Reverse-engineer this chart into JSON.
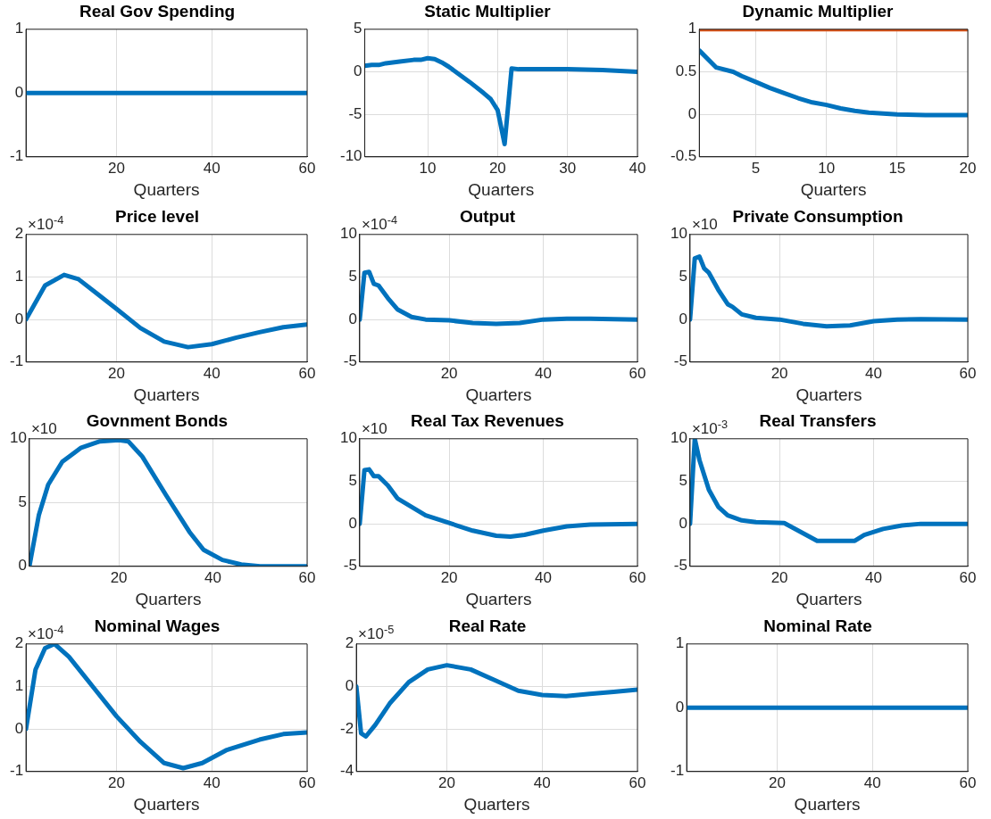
{
  "chart_data": [
    {
      "type": "line",
      "title": "Real Gov Spending",
      "xlabel": "Quarters",
      "xlim": [
        1,
        60
      ],
      "xticks": [
        20,
        40,
        60
      ],
      "ylim": [
        -1,
        1
      ],
      "yticks": [
        -1,
        0,
        1
      ],
      "grid": true,
      "series": [
        {
          "color": "#0072bd",
          "x": [
            1,
            60
          ],
          "values": [
            0,
            0
          ]
        }
      ]
    },
    {
      "type": "line",
      "title": "Static Multiplier",
      "xlabel": "Quarters",
      "xlim": [
        1,
        40
      ],
      "xticks": [
        10,
        20,
        30,
        40
      ],
      "ylim": [
        -10,
        5
      ],
      "yticks": [
        -10,
        -5,
        0,
        5
      ],
      "grid": true,
      "series": [
        {
          "color": "#0072bd",
          "x": [
            1,
            2,
            3,
            4,
            6,
            8,
            9,
            10,
            11,
            12,
            13,
            14,
            16,
            18,
            19,
            20,
            21,
            22,
            23,
            30,
            35,
            40
          ],
          "values": [
            0.7,
            0.8,
            0.8,
            1.0,
            1.2,
            1.4,
            1.4,
            1.6,
            1.5,
            1.1,
            0.6,
            0,
            -1.2,
            -2.5,
            -3.2,
            -4.5,
            -8.5,
            0.4,
            0.3,
            0.3,
            0.2,
            0
          ]
        }
      ]
    },
    {
      "type": "line",
      "title": "Dynamic Multiplier",
      "xlabel": "Quarters",
      "xlim": [
        1,
        20
      ],
      "xticks": [
        5,
        10,
        15,
        20
      ],
      "ylim": [
        -0.5,
        1
      ],
      "yticks": [
        -0.5,
        0,
        0.5,
        1
      ],
      "grid": true,
      "series": [
        {
          "color": "#0072bd",
          "x": [
            1,
            2.2,
            3.4,
            4,
            5,
            6,
            7,
            8,
            9,
            10,
            11,
            12,
            13,
            14,
            15,
            17,
            20
          ],
          "values": [
            0.75,
            0.55,
            0.5,
            0.45,
            0.38,
            0.31,
            0.25,
            0.19,
            0.14,
            0.11,
            0.07,
            0.04,
            0.02,
            0.01,
            0,
            -0.01,
            -0.01
          ]
        },
        {
          "color": "#d95319",
          "x": [
            1,
            20
          ],
          "values": [
            1,
            1
          ]
        }
      ]
    },
    {
      "type": "line",
      "title": "Price level",
      "xlabel": "Quarters",
      "xlim": [
        1,
        60
      ],
      "xticks": [
        20,
        40,
        60
      ],
      "ylim": [
        -1,
        2
      ],
      "yticks": [
        -1,
        0,
        1,
        2
      ],
      "grid": true,
      "annotations": [
        "×10$^{-4}$"
      ],
      "series": [
        {
          "color": "#0072bd",
          "x": [
            1,
            5,
            9,
            12,
            16,
            20,
            25,
            30,
            35,
            40,
            45,
            50,
            55,
            60
          ],
          "values": [
            0,
            0.8,
            1.05,
            0.95,
            0.6,
            0.25,
            -0.2,
            -0.52,
            -0.65,
            -0.58,
            -0.43,
            -0.3,
            -0.18,
            -0.12
          ]
        }
      ]
    },
    {
      "type": "line",
      "title": "Output",
      "xlabel": "Quarters",
      "xlim": [
        1,
        60
      ],
      "xticks": [
        20,
        40,
        60
      ],
      "ylim": [
        -5,
        10
      ],
      "yticks": [
        -5,
        0,
        5,
        10
      ],
      "grid": true,
      "annotations": [
        "×10$^{-4}$"
      ],
      "series": [
        {
          "color": "#0072bd",
          "x": [
            1,
            2,
            3,
            4,
            5,
            7,
            9,
            12,
            15,
            20,
            25,
            30,
            35,
            40,
            45,
            50,
            60
          ],
          "values": [
            0,
            5.5,
            5.6,
            4.2,
            4,
            2.5,
            1.2,
            0.3,
            0,
            -0.1,
            -0.4,
            -0.5,
            -0.4,
            0,
            0.1,
            0.1,
            0
          ]
        }
      ]
    },
    {
      "type": "line",
      "title": "Private Consumption",
      "xlabel": "Quarters",
      "xlim": [
        1,
        60
      ],
      "xticks": [
        20,
        40,
        60
      ],
      "ylim": [
        -5,
        10
      ],
      "yticks": [
        -5,
        0,
        5,
        10
      ],
      "grid": true,
      "annotations": [
        "×10"
      ],
      "series": [
        {
          "color": "#0072bd",
          "x": [
            1,
            2,
            3,
            4,
            5,
            7,
            9,
            10,
            12,
            15,
            20,
            25,
            30,
            35,
            40,
            45,
            50,
            60
          ],
          "values": [
            0,
            7.2,
            7.4,
            6,
            5.5,
            3.5,
            1.8,
            1.5,
            0.6,
            0.2,
            0,
            -0.5,
            -0.8,
            -0.7,
            -0.2,
            0,
            0.05,
            0
          ]
        }
      ]
    },
    {
      "type": "line",
      "title": "Govnment Bonds",
      "xlabel": "Quarters",
      "xlim": [
        1,
        60
      ],
      "xticks": [
        20,
        40,
        60
      ],
      "ylim": [
        0,
        10
      ],
      "yticks": [
        0,
        5,
        10
      ],
      "grid": true,
      "annotations": [
        "×10"
      ],
      "series": [
        {
          "color": "#0072bd",
          "x": [
            1,
            3,
            5,
            8,
            12,
            16,
            20,
            22,
            25,
            30,
            35,
            38,
            42,
            46,
            50,
            60
          ],
          "values": [
            0,
            4,
            6.4,
            8.2,
            9.3,
            9.8,
            9.9,
            9.8,
            8.6,
            5.6,
            2.7,
            1.3,
            0.5,
            0.15,
            0,
            0
          ]
        }
      ]
    },
    {
      "type": "line",
      "title": "Real Tax Revenues",
      "xlabel": "Quarters",
      "xlim": [
        1,
        60
      ],
      "xticks": [
        20,
        40,
        60
      ],
      "ylim": [
        -5,
        10
      ],
      "yticks": [
        -5,
        0,
        5,
        10
      ],
      "grid": true,
      "annotations": [
        "×10"
      ],
      "series": [
        {
          "color": "#0072bd",
          "x": [
            1,
            2,
            3,
            4,
            5,
            7,
            9,
            12,
            15,
            20,
            25,
            30,
            33,
            36,
            40,
            45,
            50,
            60
          ],
          "values": [
            0,
            6.3,
            6.4,
            5.6,
            5.6,
            4.5,
            3,
            2,
            1,
            0.1,
            -0.8,
            -1.4,
            -1.5,
            -1.3,
            -0.8,
            -0.3,
            -0.1,
            0
          ]
        }
      ]
    },
    {
      "type": "line",
      "title": "Real Transfers",
      "xlabel": "Quarters",
      "xlim": [
        1,
        60
      ],
      "xticks": [
        20,
        40,
        60
      ],
      "ylim": [
        -5,
        10
      ],
      "yticks": [
        -5,
        0,
        5,
        10
      ],
      "grid": true,
      "annotations": [
        "×10$^{-3}$"
      ],
      "series": [
        {
          "color": "#0072bd",
          "x": [
            1,
            2,
            3,
            5,
            7,
            9,
            12,
            15,
            21,
            28,
            36,
            38,
            42,
            46,
            50,
            60
          ],
          "values": [
            0,
            10,
            7.5,
            4,
            2,
            1,
            0.4,
            0.2,
            0.1,
            -2,
            -2,
            -1.3,
            -0.6,
            -0.2,
            0,
            0
          ]
        }
      ]
    },
    {
      "type": "line",
      "title": "Nominal Wages",
      "xlabel": "Quarters",
      "xlim": [
        1,
        60
      ],
      "xticks": [
        20,
        40,
        60
      ],
      "ylim": [
        -1,
        2
      ],
      "yticks": [
        -1,
        0,
        1,
        2
      ],
      "grid": true,
      "annotations": [
        "×10$^{-4}$"
      ],
      "series": [
        {
          "color": "#0072bd",
          "x": [
            1,
            3,
            5,
            7,
            10,
            15,
            20,
            25,
            30,
            34,
            38,
            43,
            50,
            55,
            60
          ],
          "values": [
            0,
            1.4,
            1.9,
            2,
            1.7,
            1,
            0.3,
            -0.3,
            -0.8,
            -0.92,
            -0.8,
            -0.5,
            -0.25,
            -0.12,
            -0.08
          ]
        }
      ]
    },
    {
      "type": "line",
      "title": "Real Rate",
      "xlabel": "Quarters",
      "xlim": [
        1,
        60
      ],
      "xticks": [
        20,
        40,
        60
      ],
      "ylim": [
        -4,
        2
      ],
      "yticks": [
        -4,
        -2,
        0,
        2
      ],
      "grid": true,
      "annotations": [
        "×10$^{-5}$"
      ],
      "series": [
        {
          "color": "#0072bd",
          "x": [
            1,
            2,
            3,
            5,
            8,
            12,
            16,
            20,
            25,
            30,
            35,
            40,
            45,
            50,
            55,
            60
          ],
          "values": [
            0,
            -2.2,
            -2.35,
            -1.8,
            -0.8,
            0.2,
            0.8,
            1,
            0.8,
            0.3,
            -0.2,
            -0.4,
            -0.45,
            -0.35,
            -0.25,
            -0.15
          ]
        }
      ]
    },
    {
      "type": "line",
      "title": "Nominal Rate",
      "xlabel": "Quarters",
      "xlim": [
        1,
        60
      ],
      "xticks": [
        20,
        40,
        60
      ],
      "ylim": [
        -1,
        1
      ],
      "yticks": [
        -1,
        0,
        1
      ],
      "grid": true,
      "series": [
        {
          "color": "#0072bd",
          "x": [
            1,
            60
          ],
          "values": [
            0,
            0
          ]
        }
      ]
    }
  ]
}
